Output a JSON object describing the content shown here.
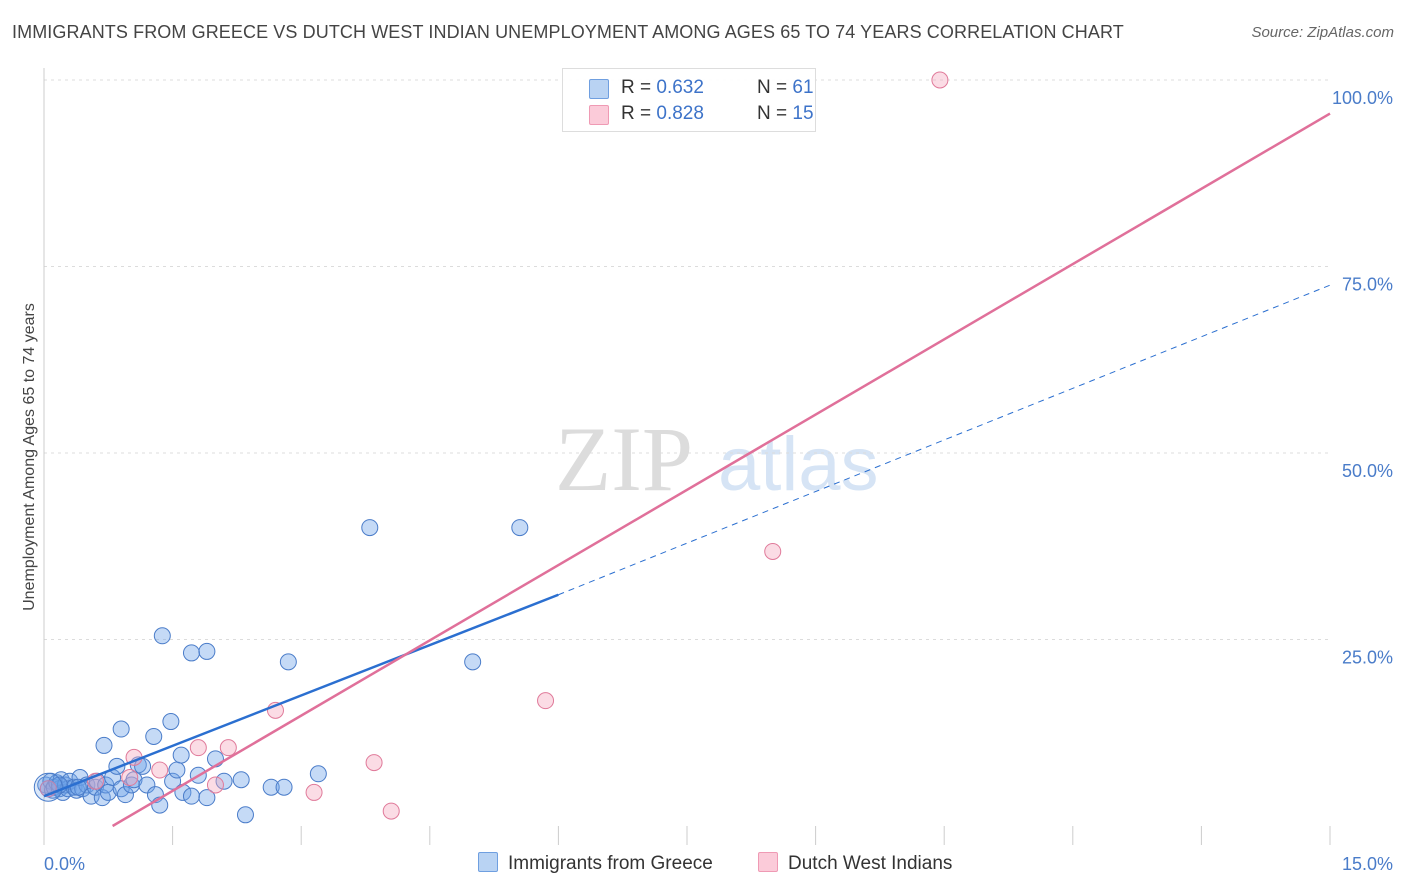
{
  "header": {
    "title": "IMMIGRANTS FROM GREECE VS DUTCH WEST INDIAN UNEMPLOYMENT AMONG AGES 65 TO 74 YEARS CORRELATION CHART",
    "source": "Source: ZipAtlas.com"
  },
  "watermark": {
    "zip": "ZIP",
    "atlas": "atlas"
  },
  "legend": {
    "items": [
      {
        "r_label": "R = ",
        "r_value": "0.632",
        "n_label": "N = ",
        "n_value": "61"
      },
      {
        "r_label": "R = ",
        "r_value": "0.828",
        "n_label": "N = ",
        "n_value": "15"
      }
    ]
  },
  "chart_data": {
    "type": "scatter",
    "title": "IMMIGRANTS FROM GREECE VS DUTCH WEST INDIAN UNEMPLOYMENT AMONG AGES 65 TO 74 YEARS CORRELATION CHART",
    "xlabel": "",
    "ylabel": "Unemployment Among Ages 65 to 74 years",
    "xlim": [
      0,
      15
    ],
    "ylim": [
      0,
      100
    ],
    "x_ticks": [
      "0.0%",
      "15.0%"
    ],
    "y_ticks": [
      {
        "value": 25,
        "label": "25.0%"
      },
      {
        "value": 50,
        "label": "50.0%"
      },
      {
        "value": 75,
        "label": "75.0%"
      },
      {
        "value": 100,
        "label": "100.0%"
      }
    ],
    "series": [
      {
        "name": "Immigrants from Greece",
        "color": "#6fa3e8",
        "stroke": "#4a7cc9",
        "r": "0.632",
        "n": "61",
        "trend": {
          "x0": 0,
          "y0": 4.0,
          "x1": 6.0,
          "y1": 31.0,
          "extend_to_x": 15.0,
          "extend_to_y": 72.5,
          "color": "#2b6fd0"
        },
        "points": [
          [
            0.02,
            5.5
          ],
          [
            0.05,
            5.0
          ],
          [
            0.08,
            6.0
          ],
          [
            0.1,
            4.8
          ],
          [
            0.12,
            5.2
          ],
          [
            0.15,
            5.8
          ],
          [
            0.18,
            5.0
          ],
          [
            0.2,
            6.2
          ],
          [
            0.22,
            4.5
          ],
          [
            0.25,
            5.5
          ],
          [
            0.28,
            5.0
          ],
          [
            0.3,
            6.0
          ],
          [
            0.35,
            5.2
          ],
          [
            0.38,
            4.8
          ],
          [
            0.42,
            6.5
          ],
          [
            0.45,
            5.0
          ],
          [
            0.5,
            5.5
          ],
          [
            0.55,
            4.0
          ],
          [
            0.6,
            5.2
          ],
          [
            0.62,
            6.0
          ],
          [
            0.68,
            3.8
          ],
          [
            0.72,
            5.5
          ],
          [
            0.75,
            4.5
          ],
          [
            0.8,
            6.5
          ],
          [
            0.85,
            8.0
          ],
          [
            0.9,
            5.0
          ],
          [
            0.95,
            4.2
          ],
          [
            1.02,
            5.5
          ],
          [
            1.05,
            6.2
          ],
          [
            1.1,
            8.2
          ],
          [
            1.15,
            8.0
          ],
          [
            1.2,
            5.5
          ],
          [
            1.3,
            4.2
          ],
          [
            1.35,
            2.8
          ],
          [
            1.5,
            6.0
          ],
          [
            1.55,
            7.5
          ],
          [
            1.62,
            4.5
          ],
          [
            1.72,
            4.0
          ],
          [
            1.8,
            6.8
          ],
          [
            1.9,
            3.8
          ],
          [
            2.0,
            9.0
          ],
          [
            2.1,
            6.0
          ],
          [
            2.3,
            6.2
          ],
          [
            2.35,
            1.5
          ],
          [
            2.65,
            5.2
          ],
          [
            2.8,
            5.2
          ],
          [
            0.7,
            10.8
          ],
          [
            0.9,
            13.0
          ],
          [
            1.28,
            12.0
          ],
          [
            1.48,
            14.0
          ],
          [
            1.6,
            9.5
          ],
          [
            1.38,
            25.5
          ],
          [
            1.72,
            23.2
          ],
          [
            1.9,
            23.4
          ],
          [
            2.85,
            22.0
          ],
          [
            3.2,
            7.0
          ],
          [
            3.8,
            40.0
          ],
          [
            5.0,
            22.0
          ],
          [
            5.55,
            40.0
          ],
          [
            0.4,
            5.2
          ],
          [
            0.18,
            5.5
          ]
        ]
      },
      {
        "name": "Dutch West Indians",
        "color": "#f5a7bf",
        "stroke": "#e07a9a",
        "r": "0.828",
        "n": "15",
        "trend": {
          "x0": 0.8,
          "y0": 0,
          "x1": 15.0,
          "y1": 95.5,
          "color": "#e0709a"
        },
        "points": [
          [
            0.05,
            5.0
          ],
          [
            0.6,
            6.0
          ],
          [
            1.05,
            9.2
          ],
          [
            1.35,
            7.5
          ],
          [
            1.8,
            10.5
          ],
          [
            2.0,
            5.5
          ],
          [
            2.15,
            10.5
          ],
          [
            2.7,
            15.5
          ],
          [
            3.15,
            4.5
          ],
          [
            3.85,
            8.5
          ],
          [
            4.05,
            2.0
          ],
          [
            5.85,
            16.8
          ],
          [
            8.5,
            36.8
          ],
          [
            10.45,
            100.0
          ],
          [
            1.0,
            6.5
          ]
        ]
      }
    ]
  },
  "bottom_legend": [
    {
      "label": "Immigrants from Greece"
    },
    {
      "label": "Dutch West Indians"
    }
  ],
  "axis_labels": {
    "x_min": "0.0%",
    "x_max": "15.0%"
  }
}
